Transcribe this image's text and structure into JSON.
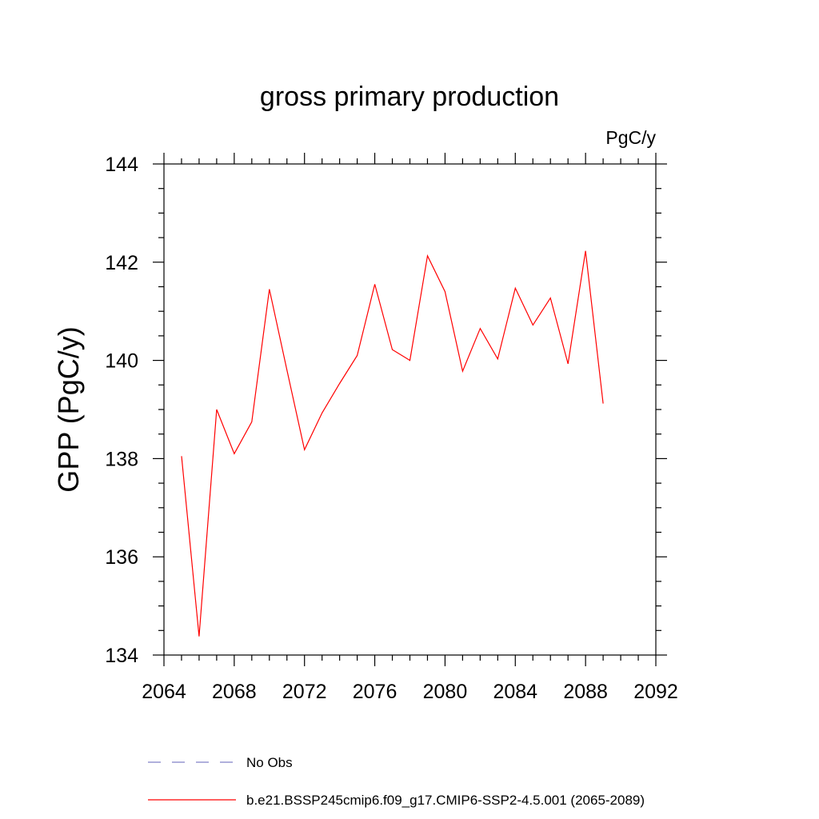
{
  "chart_data": {
    "type": "line",
    "title": "gross primary production",
    "units": "PgC/y",
    "xlabel": "",
    "ylabel": "GPP  (PgC/y)",
    "xlim": [
      2064,
      2092
    ],
    "ylim": [
      134,
      144
    ],
    "xticks": [
      2064,
      2068,
      2072,
      2076,
      2080,
      2084,
      2088,
      2092
    ],
    "xtick_labels": [
      "2064",
      "2068",
      "2072",
      "2076",
      "2080",
      "2084",
      "2088",
      "2092"
    ],
    "yticks": [
      134,
      136,
      138,
      140,
      142,
      144
    ],
    "ytick_labels": [
      "134",
      "136",
      "138",
      "140",
      "142",
      "144"
    ],
    "grid": false,
    "legend_position": "bottom",
    "series": [
      {
        "name": "b.e21.BSSP245cmip6.f09_g17.CMIP6-SSP2-4.5.001 (2065-2089)",
        "color": "#ff0000",
        "style": "solid",
        "x": [
          2065,
          2066,
          2067,
          2068,
          2069,
          2070,
          2071,
          2072,
          2073,
          2074,
          2075,
          2076,
          2077,
          2078,
          2079,
          2080,
          2081,
          2082,
          2083,
          2084,
          2085,
          2086,
          2087,
          2088,
          2089
        ],
        "values": [
          138.05,
          134.38,
          139.0,
          138.1,
          138.75,
          141.45,
          139.8,
          138.18,
          138.93,
          139.53,
          140.1,
          141.55,
          140.22,
          140.0,
          142.13,
          141.4,
          139.78,
          140.65,
          140.03,
          141.47,
          140.72,
          141.27,
          139.93,
          142.23,
          139.12
        ]
      }
    ],
    "legend": [
      {
        "label": "No Obs",
        "color": "#8080c8",
        "style": "dashed"
      },
      {
        "label": "b.e21.BSSP245cmip6.f09_g17.CMIP6-SSP2-4.5.001 (2065-2089)",
        "color": "#ff0000",
        "style": "solid"
      }
    ]
  }
}
